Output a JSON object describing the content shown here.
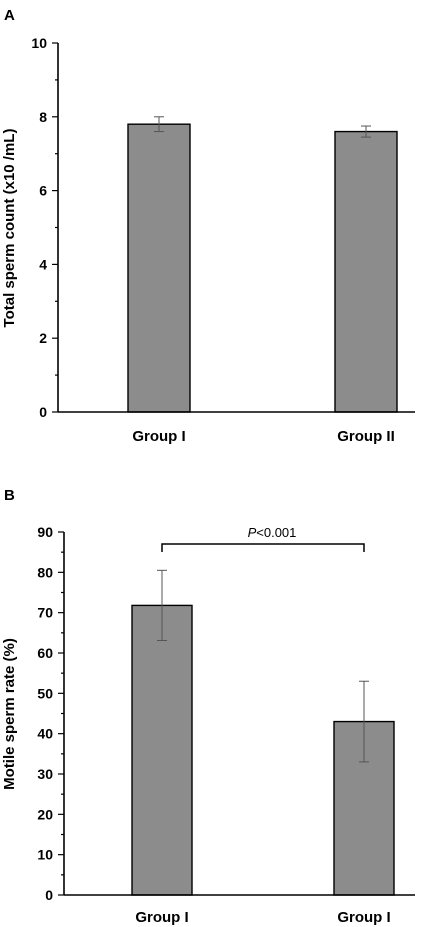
{
  "chart_data": [
    {
      "type": "bar",
      "panel_label": "A",
      "categories": [
        "Group I",
        "Group II"
      ],
      "values": [
        7.8,
        7.6
      ],
      "errors": [
        0.2,
        0.15
      ],
      "ylabel": "Total sperm count    (x10  /mL)",
      "ylim": [
        0,
        10
      ],
      "yticks": [
        "0",
        "2",
        "4",
        "6",
        "8",
        "10"
      ],
      "grid": false
    },
    {
      "type": "bar",
      "panel_label": "B",
      "categories": [
        "Group I",
        "Group I"
      ],
      "values": [
        71.8,
        43.0
      ],
      "errors": [
        8.7,
        10.0
      ],
      "ylabel": "Motile sperm rate (%)",
      "ylim": [
        0,
        90
      ],
      "yticks": [
        "0",
        "10",
        "20",
        "30",
        "40",
        "50",
        "60",
        "70",
        "80",
        "90"
      ],
      "significance": "P<0.001",
      "grid": false
    }
  ]
}
